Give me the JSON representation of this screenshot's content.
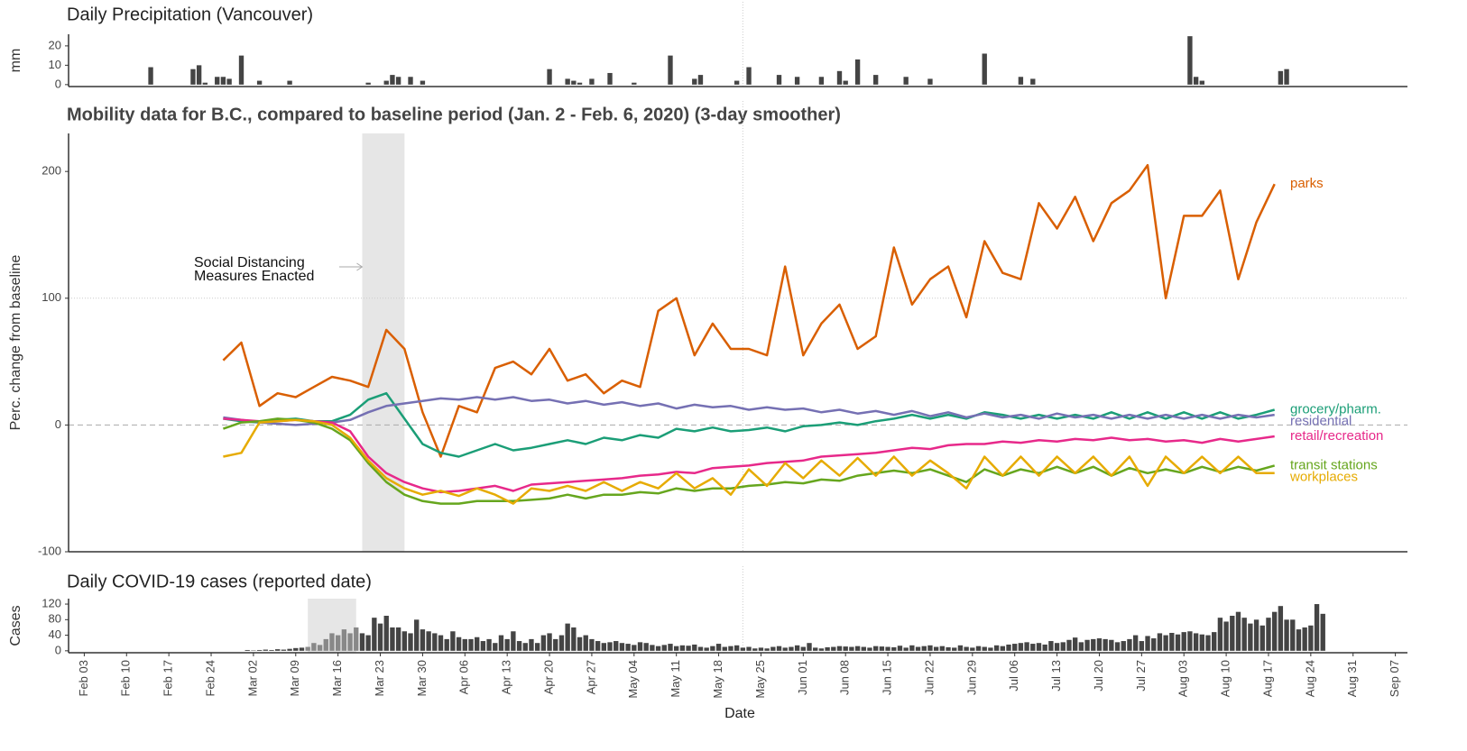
{
  "chart_data": [
    {
      "type": "bar",
      "title": "Daily Precipitation (Vancouver)",
      "ylabel": "mm",
      "color": "#444444",
      "xlim": [
        "Feb 01",
        "Sep 09"
      ],
      "ylim": [
        -1,
        26
      ],
      "yticks": [
        0,
        10,
        20
      ],
      "vline": "May 22",
      "x": [
        "Feb 14",
        "Feb 21",
        "Feb 22",
        "Feb 23",
        "Feb 25",
        "Feb 26",
        "Feb 27",
        "Feb 29",
        "Mar 03",
        "Mar 08",
        "Mar 21",
        "Mar 24",
        "Mar 25",
        "Mar 26",
        "Mar 28",
        "Mar 30",
        "Apr 20",
        "Apr 23",
        "Apr 24",
        "Apr 25",
        "Apr 27",
        "Apr 30",
        "May 04",
        "May 10",
        "May 14",
        "May 15",
        "May 21",
        "May 23",
        "May 28",
        "May 31",
        "Jun 04",
        "Jun 07",
        "Jun 08",
        "Jun 10",
        "Jun 13",
        "Jun 18",
        "Jun 22",
        "Jul 01",
        "Jul 07",
        "Jul 09",
        "Aug 04",
        "Aug 05",
        "Aug 06",
        "Aug 19",
        "Aug 20"
      ],
      "values": [
        9,
        8,
        10,
        1,
        4,
        4,
        3,
        15,
        2,
        2,
        1,
        2,
        5,
        4,
        4,
        2,
        8,
        3,
        2,
        1,
        3,
        6,
        1,
        15,
        3,
        5,
        2,
        9,
        5,
        4,
        4,
        7,
        2,
        13,
        5,
        4,
        3,
        16,
        4,
        3,
        25,
        4,
        2,
        7,
        8
      ]
    },
    {
      "type": "line",
      "title": "Mobility data for B.C., compared to baseline period (Jan. 2 - Feb. 6, 2020) (3-day smoother)",
      "ylabel": "Perc. change from baseline",
      "xlim": [
        "Feb 01",
        "Sep 09"
      ],
      "ylim": [
        -100,
        230
      ],
      "yticks": [
        -100,
        0,
        100,
        200
      ],
      "vline": "May 22",
      "shade": [
        "Mar 20",
        "Mar 27"
      ],
      "annotation": [
        "Social Distancing",
        "Measures Enacted"
      ],
      "hlines": [
        {
          "value": 100,
          "style": "dotted"
        },
        {
          "value": 0,
          "style": "dashed"
        }
      ],
      "x": [
        "Feb 26",
        "Feb 29",
        "Mar 03",
        "Mar 06",
        "Mar 09",
        "Mar 12",
        "Mar 15",
        "Mar 18",
        "Mar 21",
        "Mar 24",
        "Mar 27",
        "Mar 30",
        "Apr 02",
        "Apr 05",
        "Apr 08",
        "Apr 11",
        "Apr 14",
        "Apr 17",
        "Apr 20",
        "Apr 23",
        "Apr 26",
        "Apr 29",
        "May 02",
        "May 05",
        "May 08",
        "May 11",
        "May 14",
        "May 17",
        "May 20",
        "May 23",
        "May 26",
        "May 29",
        "Jun 01",
        "Jun 04",
        "Jun 07",
        "Jun 10",
        "Jun 13",
        "Jun 16",
        "Jun 19",
        "Jun 22",
        "Jun 25",
        "Jun 28",
        "Jul 01",
        "Jul 04",
        "Jul 07",
        "Jul 10",
        "Jul 13",
        "Jul 16",
        "Jul 19",
        "Jul 22",
        "Jul 25",
        "Jul 28",
        "Jul 31",
        "Aug 03",
        "Aug 06",
        "Aug 09",
        "Aug 12",
        "Aug 15",
        "Aug 18"
      ],
      "series": [
        {
          "name": "parks",
          "color": "#d95f02",
          "values": [
            51,
            65,
            15,
            25,
            22,
            30,
            38,
            35,
            30,
            75,
            60,
            10,
            -25,
            15,
            10,
            45,
            50,
            40,
            60,
            35,
            40,
            25,
            35,
            30,
            90,
            100,
            55,
            80,
            60,
            60,
            55,
            125,
            55,
            80,
            95,
            60,
            70,
            140,
            95,
            115,
            125,
            85,
            145,
            120,
            115,
            175,
            155,
            180,
            145,
            175,
            185,
            205,
            100,
            165,
            165,
            185,
            115,
            160,
            190
          ]
        },
        {
          "name": "grocery/pharm.",
          "color": "#1b9e77",
          "values": [
            5,
            3,
            2,
            4,
            5,
            3,
            3,
            8,
            20,
            25,
            5,
            -15,
            -22,
            -25,
            -20,
            -15,
            -20,
            -18,
            -15,
            -12,
            -15,
            -10,
            -12,
            -8,
            -10,
            -3,
            -5,
            -2,
            -5,
            -4,
            -2,
            -5,
            -1,
            0,
            2,
            0,
            3,
            5,
            8,
            5,
            8,
            5,
            10,
            8,
            5,
            8,
            5,
            8,
            5,
            10,
            5,
            10,
            5,
            10,
            5,
            10,
            5,
            8,
            12
          ]
        },
        {
          "name": "residential",
          "color": "#7570b3",
          "values": [
            6,
            4,
            2,
            1,
            0,
            1,
            2,
            4,
            10,
            15,
            17,
            19,
            21,
            20,
            22,
            20,
            22,
            19,
            20,
            17,
            19,
            16,
            18,
            15,
            17,
            13,
            16,
            14,
            15,
            12,
            14,
            12,
            13,
            10,
            12,
            9,
            11,
            8,
            11,
            7,
            10,
            6,
            9,
            6,
            8,
            5,
            9,
            6,
            8,
            5,
            8,
            5,
            8,
            5,
            8,
            5,
            8,
            6,
            8
          ]
        },
        {
          "name": "retail/recreation",
          "color": "#e7298a",
          "values": [
            5,
            4,
            3,
            3,
            4,
            3,
            2,
            -5,
            -25,
            -38,
            -45,
            -50,
            -53,
            -52,
            -50,
            -48,
            -52,
            -47,
            -46,
            -45,
            -44,
            -43,
            -42,
            -40,
            -39,
            -37,
            -38,
            -34,
            -33,
            -32,
            -30,
            -29,
            -28,
            -25,
            -24,
            -23,
            -22,
            -20,
            -18,
            -19,
            -16,
            -15,
            -15,
            -13,
            -14,
            -12,
            -13,
            -11,
            -12,
            -10,
            -12,
            -11,
            -13,
            -12,
            -14,
            -11,
            -13,
            -11,
            -9
          ]
        },
        {
          "name": "transit stations",
          "color": "#66a61e",
          "values": [
            -3,
            2,
            3,
            5,
            4,
            2,
            -3,
            -12,
            -30,
            -45,
            -55,
            -60,
            -62,
            -62,
            -60,
            -60,
            -60,
            -59,
            -58,
            -55,
            -58,
            -55,
            -55,
            -53,
            -54,
            -50,
            -52,
            -50,
            -50,
            -48,
            -47,
            -45,
            -46,
            -43,
            -44,
            -40,
            -38,
            -36,
            -38,
            -35,
            -40,
            -45,
            -35,
            -40,
            -35,
            -38,
            -33,
            -38,
            -33,
            -40,
            -34,
            -38,
            -35,
            -38,
            -33,
            -37,
            -33,
            -36,
            -32
          ]
        },
        {
          "name": "workplaces",
          "color": "#e6ab02",
          "values": [
            -25,
            -22,
            2,
            3,
            4,
            3,
            0,
            -10,
            -28,
            -42,
            -50,
            -55,
            -52,
            -56,
            -50,
            -55,
            -62,
            -50,
            -52,
            -48,
            -52,
            -45,
            -52,
            -45,
            -50,
            -38,
            -50,
            -42,
            -55,
            -35,
            -48,
            -30,
            -42,
            -28,
            -40,
            -26,
            -40,
            -25,
            -40,
            -28,
            -38,
            -50,
            -25,
            -40,
            -25,
            -40,
            -25,
            -38,
            -25,
            -40,
            -25,
            -48,
            -25,
            -38,
            -25,
            -38,
            -25,
            -38,
            -38
          ]
        }
      ]
    },
    {
      "type": "bar",
      "title": "Daily COVID-19 cases (reported date)",
      "ylabel": "Cases",
      "xlabel": "Date",
      "color": "#444444",
      "xlim": [
        "Feb 01",
        "Sep 09"
      ],
      "ylim": [
        -5,
        134
      ],
      "yticks": [
        0,
        40,
        80,
        120
      ],
      "vline": "May 22",
      "shade": [
        "Mar 11",
        "Mar 19"
      ],
      "xticks": [
        "Feb 03",
        "Feb 10",
        "Feb 17",
        "Feb 24",
        "Mar 02",
        "Mar 09",
        "Mar 16",
        "Mar 23",
        "Mar 30",
        "Apr 06",
        "Apr 13",
        "Apr 20",
        "Apr 27",
        "May 04",
        "May 11",
        "May 18",
        "May 25",
        "Jun 01",
        "Jun 08",
        "Jun 15",
        "Jun 22",
        "Jun 29",
        "Jul 06",
        "Jul 13",
        "Jul 20",
        "Jul 27",
        "Aug 03",
        "Aug 10",
        "Aug 17",
        "Aug 24",
        "Aug 31",
        "Sep 07"
      ],
      "x": [
        "Mar 01",
        "Mar 02",
        "Mar 03",
        "Mar 04",
        "Mar 05",
        "Mar 06",
        "Mar 07",
        "Mar 08",
        "Mar 09",
        "Mar 10",
        "Mar 11",
        "Mar 12",
        "Mar 13",
        "Mar 14",
        "Mar 15",
        "Mar 16",
        "Mar 17",
        "Mar 18",
        "Mar 19",
        "Mar 20",
        "Mar 21",
        "Mar 22",
        "Mar 23",
        "Mar 24",
        "Mar 25",
        "Mar 26",
        "Mar 27",
        "Mar 28",
        "Mar 29",
        "Mar 30",
        "Mar 31",
        "Apr 01",
        "Apr 02",
        "Apr 03",
        "Apr 04",
        "Apr 05",
        "Apr 06",
        "Apr 07",
        "Apr 08",
        "Apr 09",
        "Apr 10",
        "Apr 11",
        "Apr 12",
        "Apr 13",
        "Apr 14",
        "Apr 15",
        "Apr 16",
        "Apr 17",
        "Apr 18",
        "Apr 19",
        "Apr 20",
        "Apr 21",
        "Apr 22",
        "Apr 23",
        "Apr 24",
        "Apr 25",
        "Apr 26",
        "Apr 27",
        "Apr 28",
        "Apr 29",
        "Apr 30",
        "May 01",
        "May 02",
        "May 03",
        "May 04",
        "May 05",
        "May 06",
        "May 07",
        "May 08",
        "May 09",
        "May 10",
        "May 11",
        "May 12",
        "May 13",
        "May 14",
        "May 15",
        "May 16",
        "May 17",
        "May 18",
        "May 19",
        "May 20",
        "May 21",
        "May 22",
        "May 23",
        "May 24",
        "May 25",
        "May 26",
        "May 27",
        "May 28",
        "May 29",
        "May 30",
        "May 31",
        "Jun 01",
        "Jun 02",
        "Jun 03",
        "Jun 04",
        "Jun 05",
        "Jun 06",
        "Jun 07",
        "Jun 08",
        "Jun 09",
        "Jun 10",
        "Jun 11",
        "Jun 12",
        "Jun 13",
        "Jun 14",
        "Jun 15",
        "Jun 16",
        "Jun 17",
        "Jun 18",
        "Jun 19",
        "Jun 20",
        "Jun 21",
        "Jun 22",
        "Jun 23",
        "Jun 24",
        "Jun 25",
        "Jun 26",
        "Jun 27",
        "Jun 28",
        "Jun 29",
        "Jun 30",
        "Jul 01",
        "Jul 02",
        "Jul 03",
        "Jul 04",
        "Jul 05",
        "Jul 06",
        "Jul 07",
        "Jul 08",
        "Jul 09",
        "Jul 10",
        "Jul 11",
        "Jul 12",
        "Jul 13",
        "Jul 14",
        "Jul 15",
        "Jul 16",
        "Jul 17",
        "Jul 18",
        "Jul 19",
        "Jul 20",
        "Jul 21",
        "Jul 22",
        "Jul 23",
        "Jul 24",
        "Jul 25",
        "Jul 26",
        "Jul 27",
        "Jul 28",
        "Jul 29",
        "Jul 30",
        "Jul 31",
        "Aug 01",
        "Aug 02",
        "Aug 03",
        "Aug 04",
        "Aug 05",
        "Aug 06",
        "Aug 07",
        "Aug 08",
        "Aug 09",
        "Aug 10",
        "Aug 11",
        "Aug 12",
        "Aug 13",
        "Aug 14",
        "Aug 15",
        "Aug 16",
        "Aug 17",
        "Aug 18",
        "Aug 19",
        "Aug 20",
        "Aug 21",
        "Aug 22",
        "Aug 23",
        "Aug 24",
        "Aug 25",
        "Aug 26"
      ],
      "values": [
        2,
        1,
        2,
        3,
        2,
        4,
        3,
        5,
        7,
        8,
        10,
        20,
        15,
        30,
        45,
        40,
        55,
        45,
        60,
        45,
        40,
        85,
        70,
        90,
        60,
        60,
        50,
        45,
        80,
        55,
        50,
        45,
        40,
        30,
        50,
        35,
        30,
        30,
        35,
        25,
        30,
        20,
        40,
        30,
        50,
        25,
        20,
        30,
        20,
        40,
        45,
        30,
        40,
        70,
        60,
        35,
        40,
        30,
        25,
        20,
        22,
        25,
        20,
        18,
        15,
        22,
        20,
        15,
        12,
        15,
        18,
        12,
        14,
        13,
        16,
        10,
        8,
        12,
        18,
        10,
        12,
        14,
        8,
        10,
        6,
        8,
        6,
        10,
        12,
        8,
        10,
        14,
        10,
        20,
        8,
        6,
        9,
        10,
        12,
        11,
        10,
        12,
        10,
        8,
        12,
        11,
        10,
        9,
        13,
        8,
        14,
        10,
        12,
        14,
        10,
        12,
        9,
        8,
        14,
        10,
        8,
        12,
        10,
        8,
        14,
        12,
        16,
        18,
        20,
        22,
        18,
        20,
        16,
        25,
        20,
        22,
        28,
        34,
        22,
        28,
        30,
        32,
        30,
        28,
        22,
        25,
        30,
        40,
        25,
        38,
        32,
        45,
        40,
        46,
        42,
        48,
        50,
        45,
        42,
        40,
        48,
        85,
        75,
        90,
        100,
        85,
        70,
        80,
        65,
        85,
        100,
        115,
        80,
        80,
        55,
        60,
        65,
        120,
        95
      ]
    }
  ]
}
